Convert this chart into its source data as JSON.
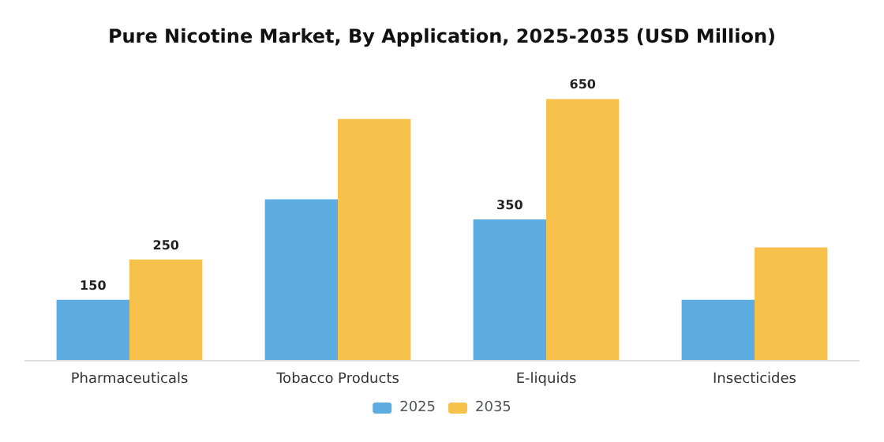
{
  "chart_data": {
    "type": "bar",
    "title": "Pure Nicotine Market, By Application, 2025-2035 (USD Million)",
    "categories": [
      "Pharmaceuticals",
      "Tobacco Products",
      "E-liquids",
      "Insecticides"
    ],
    "series": [
      {
        "name": "2025",
        "color": "#5dade2",
        "values": [
          150,
          400,
          350,
          150
        ],
        "value_labels": [
          "150",
          null,
          "350",
          null
        ]
      },
      {
        "name": "2035",
        "color": "#f7c24c",
        "values": [
          250,
          600,
          650,
          280
        ],
        "value_labels": [
          "250",
          null,
          "650",
          null
        ]
      }
    ],
    "legend": "bottom",
    "tick_labels": "x"
  }
}
